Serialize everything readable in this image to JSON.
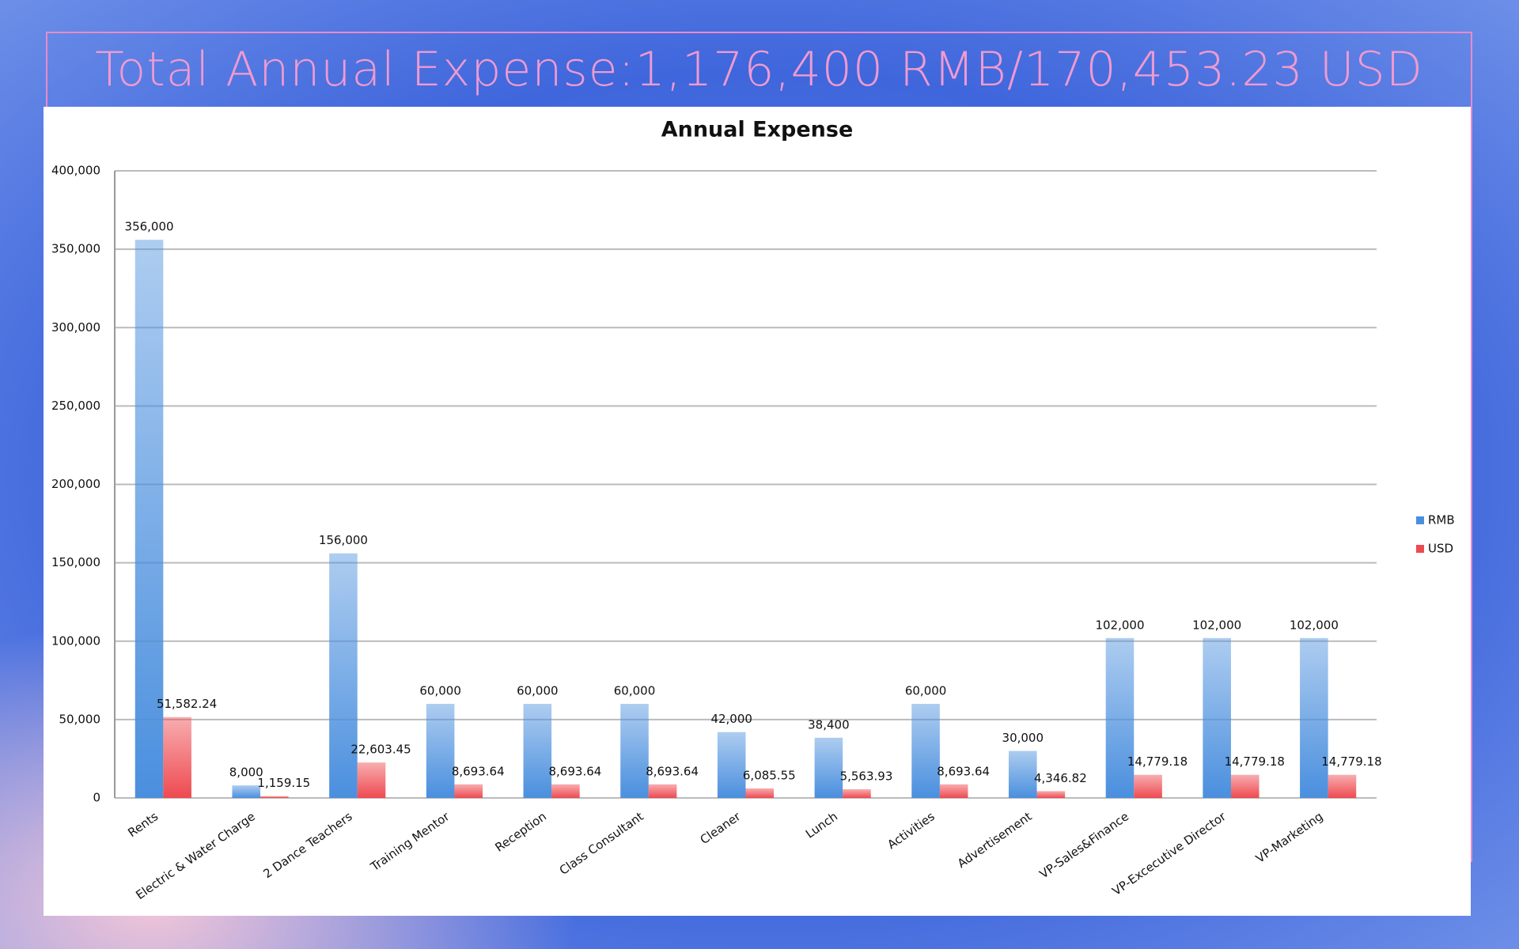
{
  "header": {
    "title": "Total Annual Expense:1,176,400 RMB/170,453.23 USD"
  },
  "chart_data": {
    "type": "bar",
    "title": "Annual Expense",
    "categories": [
      "Rents",
      "Electric & Water Charge",
      "2 Dance Teachers",
      "Training Mentor",
      "Reception",
      "Class Consultant",
      "Cleaner",
      "Lunch",
      "Activities",
      "Advertisement",
      "VP-Sales&Finance",
      "VP-Excecutive Director",
      "VP-Marketing"
    ],
    "series": [
      {
        "name": "RMB",
        "color": "#4a8fde",
        "values": [
          356000,
          8000,
          156000,
          60000,
          60000,
          60000,
          42000,
          38400,
          60000,
          30000,
          102000,
          102000,
          102000
        ],
        "value_labels": [
          "356,000",
          "8,000",
          "156,000",
          "60,000",
          "60,000",
          "60,000",
          "42,000",
          "38,400",
          "60,000",
          "30,000",
          "102,000",
          "102,000",
          "102,000"
        ]
      },
      {
        "name": "USD",
        "color": "#ee4a50",
        "values": [
          51582.24,
          1159.15,
          22603.45,
          8693.64,
          8693.64,
          8693.64,
          6085.55,
          5563.93,
          8693.64,
          4346.82,
          14779.18,
          14779.18,
          14779.18
        ],
        "value_labels": [
          "51,582.24",
          "1,159.15",
          "22,603.45",
          "8,693.64",
          "8,693.64",
          "8,693.64",
          "6,085.55",
          "5,563.93",
          "8,693.64",
          "4,346.82",
          "14,779.18",
          "14,779.18",
          "14,779.18"
        ]
      }
    ],
    "ylim": [
      0,
      400000
    ],
    "yticks": [
      0,
      {
        "value": 50000,
        "label": "50,000"
      },
      {
        "value": 100000,
        "label": "100,000"
      },
      {
        "value": 150000,
        "label": "150,000"
      },
      {
        "value": 200000,
        "label": "200,000"
      },
      {
        "value": 250000,
        "label": "250,000"
      },
      {
        "value": 300000,
        "label": "300,000"
      },
      {
        "value": 350000,
        "label": "350,000"
      },
      {
        "value": 400000,
        "label": "400,000"
      }
    ],
    "grid": true,
    "legend": "right"
  }
}
